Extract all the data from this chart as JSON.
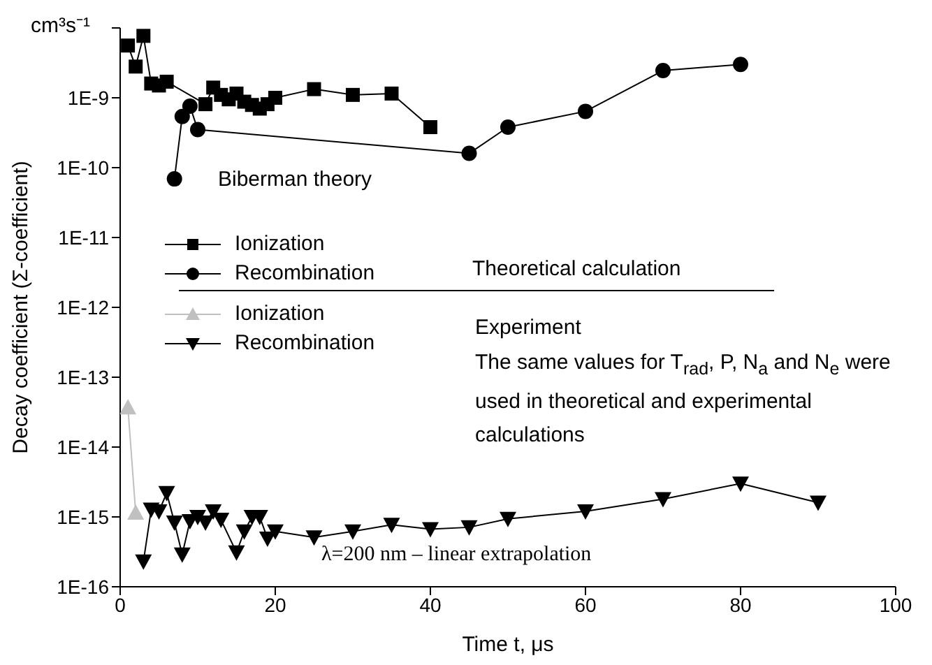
{
  "chart_data": {
    "type": "line",
    "xlabel": "Time   t, μs",
    "ylabel": "Decay coefficient  (Σ-coefficient)",
    "log": "y",
    "grid": false,
    "legend": "left",
    "xlim": [
      0,
      100
    ],
    "xticks": [
      0,
      20,
      40,
      60,
      80,
      100
    ],
    "ylim": [
      1e-16,
      1e-08
    ],
    "yticks": [
      {
        "value": 1e-16,
        "label": "1E-16"
      },
      {
        "value": 1e-15,
        "label": "1E-15"
      },
      {
        "value": 1e-14,
        "label": "1E-14"
      },
      {
        "value": 1e-13,
        "label": "1E-13"
      },
      {
        "value": 1e-12,
        "label": "1E-12"
      },
      {
        "value": 1e-11,
        "label": "1E-11"
      },
      {
        "value": 1e-10,
        "label": "1E-10"
      },
      {
        "value": 1e-09,
        "label": "1E-9"
      },
      {
        "value": 1e-08,
        "label": null
      }
    ],
    "annotations": [
      "cm³s⁻¹",
      "Biberman theory",
      "Theoretical calculation",
      "Experiment",
      "The same values for  T$_{rad}$, P, N$_{a}$ and N$_{e}$  were used in theoretical and experimental calculations",
      "λ=200 nm – linear extrapolation"
    ],
    "series": [
      {
        "name": "Ionization",
        "color": "#000000",
        "marker": "square",
        "x": [
          1,
          2,
          3,
          4,
          5,
          6,
          11,
          12,
          13,
          14,
          15,
          16,
          17,
          18,
          19,
          20,
          25,
          30,
          35,
          40
        ],
        "values": [
          5.6e-09,
          2.8e-09,
          7.7e-09,
          1.6e-09,
          1.5e-09,
          1.7e-09,
          8.1e-10,
          1.4e-09,
          1.1e-09,
          9.5e-10,
          1.15e-09,
          8.8e-10,
          7.9e-10,
          7e-10,
          8.1e-10,
          1e-09,
          1.33e-09,
          1.1e-09,
          1.15e-09,
          3.8e-10
        ]
      },
      {
        "name": "Recombination",
        "color": "#000000",
        "marker": "circle",
        "x": [
          7,
          8,
          9,
          10,
          45,
          50,
          60,
          70,
          80
        ],
        "values": [
          6.9e-11,
          5.4e-10,
          7.6e-10,
          3.5e-10,
          1.6e-10,
          3.8e-10,
          6.4e-10,
          2.45e-09,
          3e-09
        ]
      },
      {
        "name": "Ionization",
        "color": "#c0c0c0",
        "marker": "triangle",
        "x": [
          1,
          2
        ],
        "values": [
          3.7e-14,
          1.15e-15
        ]
      },
      {
        "name": "Recombination",
        "color": "#000000",
        "marker": "triangle-down",
        "x": [
          3,
          4,
          5,
          6,
          7,
          8,
          9,
          10,
          11,
          12,
          13,
          15,
          16,
          17,
          18,
          19,
          20,
          25,
          30,
          35,
          40,
          45,
          50,
          60,
          70,
          80,
          90
        ],
        "values": [
          2.3e-16,
          1.27e-15,
          1.2e-15,
          2.2e-15,
          8.3e-16,
          2.9e-16,
          8.7e-16,
          1e-15,
          8.3e-16,
          1.2e-15,
          9.1e-16,
          3.1e-16,
          6.2e-16,
          1e-15,
          1e-15,
          4.9e-16,
          6.2e-16,
          5.1e-16,
          6.2e-16,
          7.7e-16,
          6.7e-16,
          7.1e-16,
          9.4e-16,
          1.2e-15,
          1.8e-15,
          3e-15,
          1.6e-15
        ]
      }
    ]
  }
}
